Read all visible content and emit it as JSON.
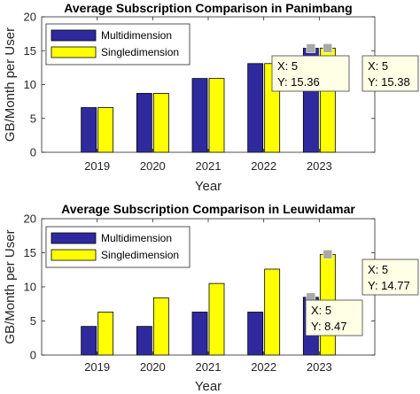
{
  "figure": {
    "ylabel": "GB/Month per User"
  },
  "chart_data": [
    {
      "type": "bar",
      "title": "Average Subscription Comparison in Panimbang",
      "categories": [
        "2019",
        "2020",
        "2021",
        "2022",
        "2023"
      ],
      "series": [
        {
          "name": "Multidimension",
          "color": "#2e2a9e",
          "values": [
            6.6,
            8.7,
            10.9,
            13.1,
            15.36
          ]
        },
        {
          "name": "Singledimension",
          "color": "#ffff00",
          "values": [
            6.6,
            8.7,
            10.9,
            13.1,
            15.38
          ]
        }
      ],
      "xlabel": "Year",
      "ylabel": "GB/Month per User",
      "ylim": [
        0,
        20
      ],
      "yticks": [
        0,
        5,
        10,
        15,
        20
      ],
      "legend": "top-left",
      "grid": false,
      "datatips": [
        {
          "x_label": "X: 5",
          "y_label": "Y: 15.36",
          "series_index": 0,
          "category_index": 4
        },
        {
          "x_label": "X: 5",
          "y_label": "Y: 15.38",
          "series_index": 1,
          "category_index": 4
        }
      ]
    },
    {
      "type": "bar",
      "title": "Average Subscription Comparison in Leuwidamar",
      "categories": [
        "2019",
        "2020",
        "2021",
        "2022",
        "2023"
      ],
      "series": [
        {
          "name": "Multidimension",
          "color": "#2e2a9e",
          "values": [
            4.2,
            4.2,
            6.3,
            6.3,
            8.47
          ]
        },
        {
          "name": "Singledimension",
          "color": "#ffff00",
          "values": [
            6.3,
            8.4,
            10.5,
            12.6,
            14.77
          ]
        }
      ],
      "xlabel": "Year",
      "ylabel": "GB/Month per User",
      "ylim": [
        0,
        20
      ],
      "yticks": [
        0,
        5,
        10,
        15,
        20
      ],
      "legend": "top-left",
      "grid": false,
      "datatips": [
        {
          "x_label": "X: 5",
          "y_label": "Y: 8.47",
          "series_index": 0,
          "category_index": 4
        },
        {
          "x_label": "X: 5",
          "y_label": "Y: 14.77",
          "series_index": 1,
          "category_index": 4
        }
      ]
    }
  ]
}
